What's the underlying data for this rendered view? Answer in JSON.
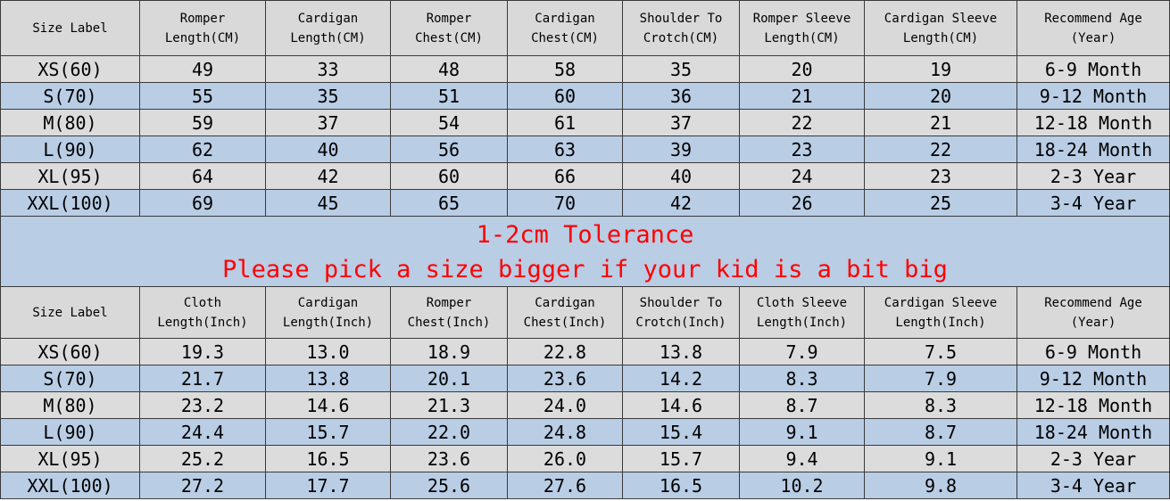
{
  "table1": {
    "header": [
      "Size Label",
      "Romper\nLength(CM)",
      "Cardigan\nLength(CM)",
      "Romper\nChest(CM)",
      "Cardigan\nChest(CM)",
      "Shoulder To\nCrotch(CM)",
      "Romper Sleeve\nLength(CM)",
      "Cardigan Sleeve\nLength(CM)",
      "Recommend Age\n(Year)"
    ],
    "rows": [
      [
        "XS(60)",
        "49",
        "33",
        "48",
        "58",
        "35",
        "20",
        "19",
        "6-9 Month"
      ],
      [
        "S(70)",
        "55",
        "35",
        "51",
        "60",
        "36",
        "21",
        "20",
        "9-12 Month"
      ],
      [
        "M(80)",
        "59",
        "37",
        "54",
        "61",
        "37",
        "22",
        "21",
        "12-18 Month"
      ],
      [
        "L(90)",
        "62",
        "40",
        "56",
        "63",
        "39",
        "23",
        "22",
        "18-24 Month"
      ],
      [
        "XL(95)",
        "64",
        "42",
        "60",
        "66",
        "40",
        "24",
        "23",
        "2-3 Year"
      ],
      [
        "XXL(100)",
        "69",
        "45",
        "65",
        "70",
        "42",
        "26",
        "25",
        "3-4 Year"
      ]
    ]
  },
  "note": {
    "line1": "1-2cm Tolerance",
    "line2": "Please pick a size bigger if your kid is a bit big"
  },
  "table2": {
    "header": [
      "Size Label",
      "Cloth\nLength(Inch)",
      "Cardigan\nLength(Inch)",
      "Romper\nChest(Inch)",
      "Cardigan\nChest(Inch)",
      "Shoulder To\nCrotch(Inch)",
      "Cloth Sleeve\nLength(Inch)",
      "Cardigan Sleeve\nLength(Inch)",
      "Recommend Age\n(Year)"
    ],
    "rows": [
      [
        "XS(60)",
        "19.3",
        "13.0",
        "18.9",
        "22.8",
        "13.8",
        "7.9",
        "7.5",
        "6-9 Month"
      ],
      [
        "S(70)",
        "21.7",
        "13.8",
        "20.1",
        "23.6",
        "14.2",
        "8.3",
        "7.9",
        "9-12 Month"
      ],
      [
        "M(80)",
        "23.2",
        "14.6",
        "21.3",
        "24.0",
        "14.6",
        "8.7",
        "8.3",
        "12-18 Month"
      ],
      [
        "L(90)",
        "24.4",
        "15.7",
        "22.0",
        "24.8",
        "15.4",
        "9.1",
        "8.7",
        "18-24 Month"
      ],
      [
        "XL(95)",
        "25.2",
        "16.5",
        "23.6",
        "26.0",
        "15.7",
        "9.4",
        "9.1",
        "2-3 Year"
      ],
      [
        "XXL(100)",
        "27.2",
        "17.7",
        "25.6",
        "27.6",
        "16.5",
        "10.2",
        "9.8",
        "3-4 Year"
      ]
    ]
  }
}
